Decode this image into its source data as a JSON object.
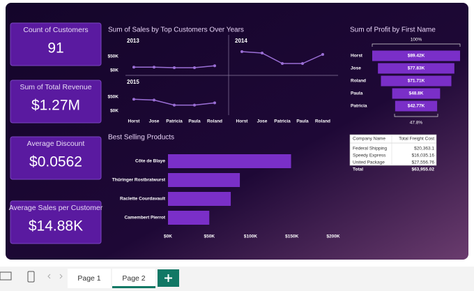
{
  "cards": [
    {
      "label": "Count of Customers",
      "value": "91"
    },
    {
      "label": "Sum of Total Revenue",
      "value": "$1.27M"
    },
    {
      "label": "Average Discount",
      "value": "$0.0562"
    },
    {
      "label": "Average Sales per Customer",
      "value": "$14.88K"
    }
  ],
  "chart_data": [
    {
      "type": "line",
      "title": "Sum of Sales by Top Customers Over Years",
      "categories": [
        "Horst",
        "Jose",
        "Patricia",
        "Paula",
        "Roland"
      ],
      "panels": [
        {
          "title": "2013",
          "values": [
            12000,
            12000,
            10000,
            10000,
            17000
          ]
        },
        {
          "title": "2014",
          "values": [
            67500,
            62500,
            25000,
            25000,
            57500
          ]
        },
        {
          "title": "2015",
          "values": [
            42000,
            39000,
            21000,
            21000,
            29000
          ]
        }
      ],
      "ylim": [
        0,
        110000
      ],
      "yticks": [
        {
          "value": 0,
          "label": "$0K"
        },
        {
          "value": 50000,
          "label": "$50K"
        }
      ],
      "color": "#9b6fd6"
    },
    {
      "type": "funnel",
      "title": "Sum of Profit by First Name",
      "categories": [
        "Horst",
        "Jose",
        "Roland",
        "Paula",
        "Patricia"
      ],
      "values": [
        89420,
        77830,
        71710,
        48800,
        42770
      ],
      "value_labels": [
        "$89.42K",
        "$77.83K",
        "$71.71K",
        "$48.8K",
        "$42.77K"
      ],
      "annotations": [
        "100%",
        "47.8%"
      ],
      "color": "#7a2fc8"
    },
    {
      "type": "bar",
      "title": "Best Selling Products",
      "categories": [
        "Côte de Blaye",
        "Thüringer Rostbratwurst",
        "Raclette Courdavault",
        "Camembert Pierrot"
      ],
      "values": [
        149000,
        87000,
        76000,
        50000
      ],
      "xlim": [
        0,
        200000
      ],
      "xticks": [
        {
          "value": 0,
          "label": "$0K"
        },
        {
          "value": 50000,
          "label": "$50K"
        },
        {
          "value": 100000,
          "label": "$100K"
        },
        {
          "value": 150000,
          "label": "$150K"
        },
        {
          "value": 200000,
          "label": "$200K"
        }
      ],
      "color": "#7a2fc8"
    }
  ],
  "table": {
    "columns": [
      "Company Name",
      "Total Freight Cost"
    ],
    "rows": [
      [
        "Federal Shipping",
        "$20,363.1"
      ],
      [
        "Speedy Express",
        "$16,035.16"
      ],
      [
        "United Package",
        "$27,556.76"
      ]
    ],
    "total": [
      "Total",
      "$63,955.02"
    ]
  },
  "tabs": [
    "Page 1",
    "Page 2"
  ]
}
